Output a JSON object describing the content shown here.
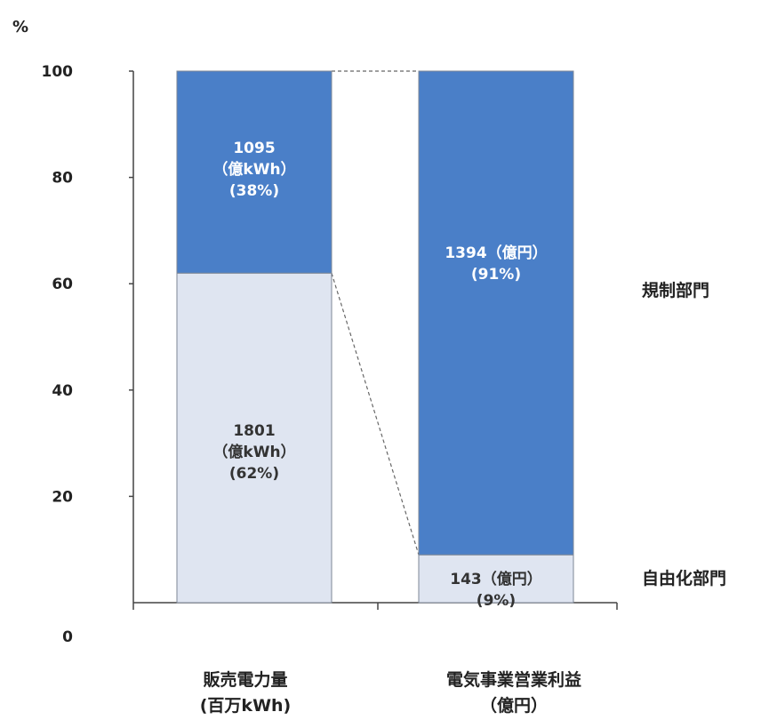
{
  "chart_data": {
    "type": "bar",
    "stacked": true,
    "normalized_percent": true,
    "y_unit": "%",
    "ylim": [
      0,
      100
    ],
    "yticks": [
      0,
      20,
      40,
      60,
      80,
      100
    ],
    "grid": false,
    "categories": [
      {
        "line1": "販売電力量",
        "line2": "(百万kWh)"
      },
      {
        "line1": "電気事業営業利益",
        "line2": "（億円）"
      }
    ],
    "series": [
      {
        "name": "自由化部門",
        "color": "#dfe5f1",
        "values": [
          62,
          9
        ],
        "labels": [
          [
            "1801",
            "（億kWh）",
            "(62%)"
          ],
          [
            "143（億円）",
            "(9%)"
          ]
        ]
      },
      {
        "name": "規制部門",
        "color": "#4a7fc8",
        "values": [
          38,
          91
        ],
        "labels": [
          [
            "1095",
            "（億kWh）",
            "(38%)"
          ],
          [
            "1394（億円）",
            "(91%)"
          ]
        ]
      }
    ],
    "legend_placement": "right, beside each segment"
  }
}
